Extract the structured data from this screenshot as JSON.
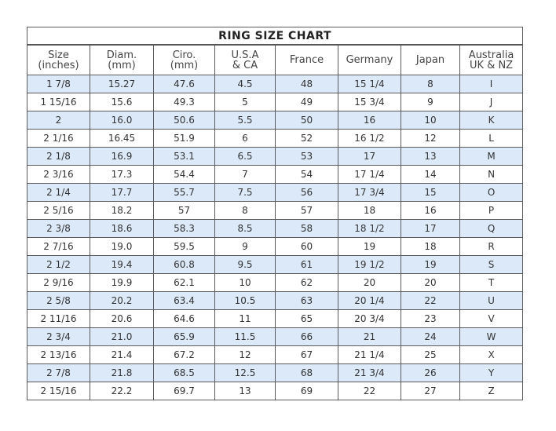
{
  "title": "RING SIZE  CHART",
  "headers": [
    "Size\n(inches)",
    "Diam.\n(mm)",
    "Ciro.\n(mm)",
    "U.S.A\n& CA",
    "France",
    "Germany",
    "Japan",
    "Australia\nUK & NZ"
  ],
  "rows": [
    [
      "1 7/8",
      "15.27",
      "47.6",
      "4.5",
      "48",
      "15 1/4",
      "8",
      "I"
    ],
    [
      "1 15/16",
      "15.6",
      "49.3",
      "5",
      "49",
      "15 3/4",
      "9",
      "J"
    ],
    [
      "2",
      "16.0",
      "50.6",
      "5.5",
      "50",
      "16",
      "10",
      "K"
    ],
    [
      "2 1/16",
      "16.45",
      "51.9",
      "6",
      "52",
      "16 1/2",
      "12",
      "L"
    ],
    [
      "2 1/8",
      "16.9",
      "53.1",
      "6.5",
      "53",
      "17",
      "13",
      "M"
    ],
    [
      "2 3/16",
      "17.3",
      "54.4",
      "7",
      "54",
      "17 1/4",
      "14",
      "N"
    ],
    [
      "2 1/4",
      "17.7",
      "55.7",
      "7.5",
      "56",
      "17 3/4",
      "15",
      "O"
    ],
    [
      "2 5/16",
      "18.2",
      "57",
      "8",
      "57",
      "18",
      "16",
      "P"
    ],
    [
      "2 3/8",
      "18.6",
      "58.3",
      "8.5",
      "58",
      "18 1/2",
      "17",
      "Q"
    ],
    [
      "2 7/16",
      "19.0",
      "59.5",
      "9",
      "60",
      "19",
      "18",
      "R"
    ],
    [
      "2 1/2",
      "19.4",
      "60.8",
      "9.5",
      "61",
      "19 1/2",
      "19",
      "S"
    ],
    [
      "2 9/16",
      "19.9",
      "62.1",
      "10",
      "62",
      "20",
      "20",
      "T"
    ],
    [
      "2 5/8",
      "20.2",
      "63.4",
      "10.5",
      "63",
      "20 1/4",
      "22",
      "U"
    ],
    [
      "2 11/16",
      "20.6",
      "64.6",
      "11",
      "65",
      "20 3/4",
      "23",
      "V"
    ],
    [
      "2 3/4",
      "21.0",
      "65.9",
      "11.5",
      "66",
      "21",
      "24",
      "W"
    ],
    [
      "2 13/16",
      "21.4",
      "67.2",
      "12",
      "67",
      "21 1/4",
      "25",
      "X"
    ],
    [
      "2 7/8",
      "21.8",
      "68.5",
      "12.5",
      "68",
      "21 3/4",
      "26",
      "Y"
    ],
    [
      "2 15/16",
      "22.2",
      "69.7",
      "13",
      "69",
      "22",
      "27",
      "Z"
    ]
  ],
  "colors": {
    "stripe": "#dbe9f8",
    "border": "#5a5a5a",
    "text": "#333333"
  }
}
